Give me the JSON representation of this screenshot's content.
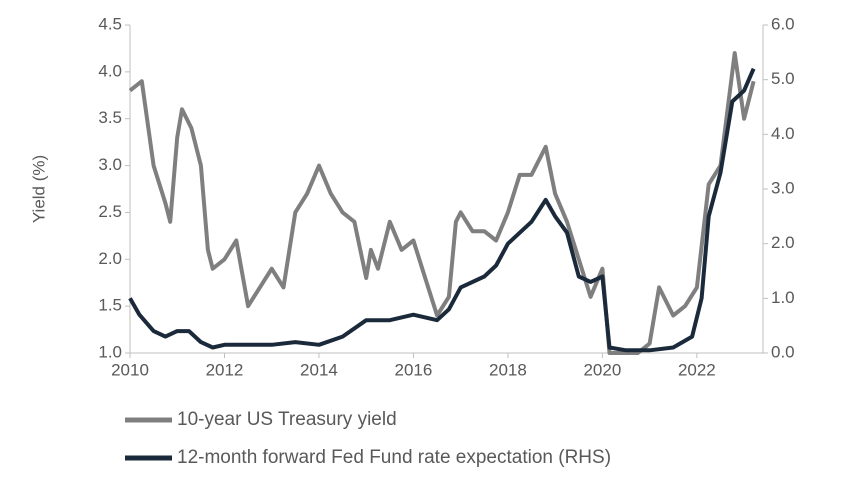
{
  "chart_data": {
    "type": "line",
    "y_label": "Yield (%)",
    "xlim": [
      2010,
      2023.4
    ],
    "xticks": [
      2010,
      2012,
      2014,
      2016,
      2018,
      2020,
      2022
    ],
    "ylim": [
      1.0,
      4.5
    ],
    "yticks": [
      {
        "value": 1.0,
        "label": "1.0"
      },
      1.5,
      {
        "value": 2.0,
        "label": "2.0"
      },
      2.5,
      {
        "value": 3.0,
        "label": "3.0"
      },
      3.5,
      {
        "value": 4.0,
        "label": "4.0"
      },
      4.5
    ],
    "y2lim": [
      0,
      6
    ],
    "y2ticks": [
      {
        "value": 0,
        "label": "0.0"
      },
      {
        "value": 1,
        "label": "1.0"
      },
      {
        "value": 2,
        "label": "2.0"
      },
      {
        "value": 3,
        "label": "3.0"
      },
      {
        "value": 4,
        "label": "4.0"
      },
      {
        "value": 5,
        "label": "5.0"
      },
      {
        "value": 6,
        "label": "6.0"
      }
    ],
    "series": [
      {
        "name": "10-year US Treasury yield",
        "color": "#7f7f7f",
        "axis": "y",
        "x": [
          2010.0,
          2010.25,
          2010.5,
          2010.75,
          2010.85,
          2011.0,
          2011.1,
          2011.3,
          2011.5,
          2011.65,
          2011.75,
          2012.0,
          2012.25,
          2012.5,
          2012.75,
          2013.0,
          2013.25,
          2013.5,
          2013.75,
          2014.0,
          2014.25,
          2014.5,
          2014.75,
          2015.0,
          2015.1,
          2015.25,
          2015.5,
          2015.75,
          2016.0,
          2016.25,
          2016.5,
          2016.75,
          2016.9,
          2017.0,
          2017.25,
          2017.5,
          2017.75,
          2018.0,
          2018.25,
          2018.5,
          2018.8,
          2019.0,
          2019.25,
          2019.5,
          2019.75,
          2020.0,
          2020.15,
          2020.25,
          2020.75,
          2021.0,
          2021.2,
          2021.5,
          2021.75,
          2022.0,
          2022.25,
          2022.5,
          2022.8,
          2023.0,
          2023.2
        ],
        "values": [
          3.8,
          3.9,
          3.0,
          2.6,
          2.4,
          3.3,
          3.6,
          3.4,
          3.0,
          2.1,
          1.9,
          2.0,
          2.2,
          1.5,
          1.7,
          1.9,
          1.7,
          2.5,
          2.7,
          3.0,
          2.7,
          2.5,
          2.4,
          1.8,
          2.1,
          1.9,
          2.4,
          2.1,
          2.2,
          1.8,
          1.4,
          1.6,
          2.4,
          2.5,
          2.3,
          2.3,
          2.2,
          2.5,
          2.9,
          2.9,
          3.2,
          2.7,
          2.4,
          2.0,
          1.6,
          1.9,
          1.0,
          1.0,
          1.0,
          1.1,
          1.7,
          1.4,
          1.5,
          1.7,
          2.8,
          3.0,
          4.2,
          3.5,
          3.9
        ]
      },
      {
        "name": "12-month forward Fed Fund rate expectation (RHS)",
        "color": "#1b2a3a",
        "axis": "y2",
        "x": [
          2010.0,
          2010.2,
          2010.5,
          2010.75,
          2011.0,
          2011.25,
          2011.5,
          2011.75,
          2012.0,
          2012.5,
          2013.0,
          2013.5,
          2014.0,
          2014.5,
          2015.0,
          2015.5,
          2016.0,
          2016.5,
          2016.75,
          2017.0,
          2017.5,
          2017.75,
          2018.0,
          2018.5,
          2018.8,
          2019.0,
          2019.25,
          2019.5,
          2019.75,
          2020.0,
          2020.15,
          2020.5,
          2021.0,
          2021.5,
          2021.9,
          2022.1,
          2022.25,
          2022.5,
          2022.75,
          2023.0,
          2023.2
        ],
        "values": [
          1.0,
          0.7,
          0.4,
          0.3,
          0.4,
          0.4,
          0.2,
          0.1,
          0.15,
          0.15,
          0.15,
          0.2,
          0.15,
          0.3,
          0.6,
          0.6,
          0.7,
          0.6,
          0.8,
          1.2,
          1.4,
          1.6,
          2.0,
          2.4,
          2.8,
          2.5,
          2.2,
          1.4,
          1.3,
          1.4,
          0.1,
          0.05,
          0.05,
          0.1,
          0.3,
          1.0,
          2.5,
          3.3,
          4.6,
          4.8,
          5.2
        ]
      }
    ]
  }
}
